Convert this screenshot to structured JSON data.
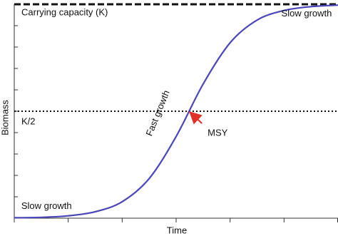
{
  "chart_data": {
    "type": "line",
    "x_label": "Time",
    "y_label": "Biomass",
    "x": [
      0,
      0.5,
      1,
      1.5,
      2,
      2.5,
      3,
      3.5,
      4,
      4.5,
      5,
      5.5,
      6
    ],
    "series": [
      {
        "color": "#4b47b8",
        "values": [
          0.002,
          0.004,
          0.011,
          0.03,
          0.077,
          0.185,
          0.382,
          0.627,
          0.82,
          0.926,
          0.971,
          0.989,
          0.996
        ]
      }
    ],
    "xlim": [
      0,
      6
    ],
    "ylim": [
      0,
      1
    ],
    "xtick_marks": [
      0,
      1,
      2,
      3,
      4,
      5,
      6
    ],
    "ytick_marks": [
      0,
      0.1,
      0.2,
      0.3,
      0.4,
      0.5,
      0.6,
      0.7,
      0.8,
      0.9,
      1
    ],
    "reference_lines": [
      {
        "label": "Carrying capacity (K)",
        "value": 1,
        "style": "dashed"
      },
      {
        "label": "K/2",
        "value": 0.5,
        "style": "dotted"
      }
    ],
    "annotations": [
      {
        "text": "Slow growth",
        "x": 4.95,
        "y": 0.955
      },
      {
        "text": "Slow growth",
        "x": 0.13,
        "y": 0.055
      },
      {
        "text": "Fast growth",
        "x": 2.67,
        "y": 0.49,
        "rotate": -68
      }
    ],
    "msy": {
      "label": "MSY",
      "x": 3.24,
      "y": 0.5,
      "label_color": "#5a50b5",
      "arrow_color": "#e0302a"
    }
  }
}
